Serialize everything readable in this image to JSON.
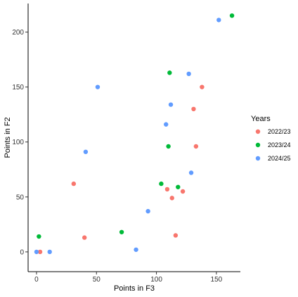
{
  "chart_data": {
    "type": "scatter",
    "title": "",
    "xlabel": "Points in F3",
    "ylabel": "Points in F2",
    "xlim": [
      -7,
      170
    ],
    "ylim": [
      -18,
      226
    ],
    "xticks": [
      0,
      50,
      100,
      150
    ],
    "yticks": [
      0,
      50,
      100,
      150,
      200
    ],
    "grid": false,
    "legend": {
      "title": "Years",
      "placement": "right"
    },
    "series": [
      {
        "name": "2022/23",
        "color": "#F8766D",
        "points": [
          {
            "x": 3,
            "y": 0
          },
          {
            "x": 31,
            "y": 62
          },
          {
            "x": 40,
            "y": 13
          },
          {
            "x": 109,
            "y": 57
          },
          {
            "x": 113,
            "y": 49
          },
          {
            "x": 116,
            "y": 15
          },
          {
            "x": 122,
            "y": 55
          },
          {
            "x": 131,
            "y": 130
          },
          {
            "x": 133,
            "y": 96
          },
          {
            "x": 138,
            "y": 150
          }
        ]
      },
      {
        "name": "2023/24",
        "color": "#00BA38",
        "points": [
          {
            "x": 2,
            "y": 14
          },
          {
            "x": 71,
            "y": 18
          },
          {
            "x": 104,
            "y": 62
          },
          {
            "x": 110,
            "y": 96
          },
          {
            "x": 111,
            "y": 163
          },
          {
            "x": 118,
            "y": 59
          },
          {
            "x": 163,
            "y": 215
          }
        ]
      },
      {
        "name": "2024/25",
        "color": "#619CFF",
        "points": [
          {
            "x": 0,
            "y": 0
          },
          {
            "x": 11,
            "y": 0
          },
          {
            "x": 41,
            "y": 91
          },
          {
            "x": 51,
            "y": 150
          },
          {
            "x": 83,
            "y": 2
          },
          {
            "x": 93,
            "y": 37
          },
          {
            "x": 108,
            "y": 116
          },
          {
            "x": 112,
            "y": 134
          },
          {
            "x": 127,
            "y": 162
          },
          {
            "x": 129,
            "y": 72
          },
          {
            "x": 152,
            "y": 211
          }
        ]
      }
    ]
  }
}
